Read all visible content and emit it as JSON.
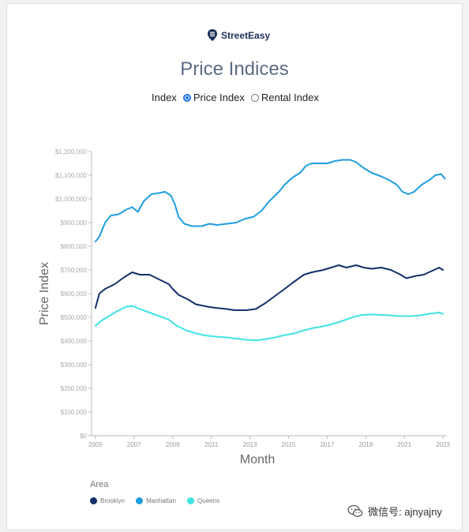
{
  "brand": {
    "name": "StreetEasy"
  },
  "watermark": {
    "text": "微信号: ajnyajny"
  },
  "controls": {
    "label": "Index",
    "options": [
      {
        "label": "Price Index",
        "selected": true
      },
      {
        "label": "Rental Index",
        "selected": false
      }
    ]
  },
  "legend": {
    "title": "Area"
  },
  "colors": {
    "accent": "#1a73e8",
    "brooklyn": "#13306a",
    "manhattan": "#1e9de0",
    "queens": "#41e3e3"
  },
  "chart_data": {
    "type": "line",
    "title": "Price Indices",
    "xlabel": "Month",
    "ylabel": "Price Index",
    "xlim": [
      2004.8,
      2023.2
    ],
    "ylim": [
      0,
      1200000
    ],
    "xticks": [
      2005,
      2007,
      2009,
      2011,
      2013,
      2015,
      2017,
      2019,
      2021,
      2023
    ],
    "yticks": [
      {
        "value": 0,
        "label": "$0"
      },
      {
        "value": 100000,
        "label": "$100,000"
      },
      {
        "value": 200000,
        "label": "$200,000"
      },
      {
        "value": 300000,
        "label": "$300,000"
      },
      {
        "value": 400000,
        "label": "$400,000"
      },
      {
        "value": 500000,
        "label": "$500,000"
      },
      {
        "value": 600000,
        "label": "$600,000"
      },
      {
        "value": 700000,
        "label": "$700,000"
      },
      {
        "value": 800000,
        "label": "$800,000"
      },
      {
        "value": 900000,
        "label": "$900,000"
      },
      {
        "value": 1000000,
        "label": "$1,000,000"
      },
      {
        "value": 1100000,
        "label": "$1,100,000"
      },
      {
        "value": 1200000,
        "label": "$1,200,000"
      }
    ],
    "grid": false,
    "legend_position": "bottom-left",
    "series": [
      {
        "name": "Brooklyn",
        "color": "#13306a",
        "points": [
          [
            2005.0,
            540000
          ],
          [
            2005.2,
            600000
          ],
          [
            2005.5,
            620000
          ],
          [
            2006.0,
            640000
          ],
          [
            2006.5,
            670000
          ],
          [
            2006.9,
            690000
          ],
          [
            2007.3,
            680000
          ],
          [
            2007.8,
            680000
          ],
          [
            2008.3,
            660000
          ],
          [
            2008.8,
            640000
          ],
          [
            2009.0,
            620000
          ],
          [
            2009.3,
            595000
          ],
          [
            2009.8,
            575000
          ],
          [
            2010.2,
            555000
          ],
          [
            2010.8,
            545000
          ],
          [
            2011.2,
            540000
          ],
          [
            2011.8,
            535000
          ],
          [
            2012.2,
            530000
          ],
          [
            2012.8,
            530000
          ],
          [
            2013.3,
            535000
          ],
          [
            2013.8,
            560000
          ],
          [
            2014.3,
            590000
          ],
          [
            2014.8,
            620000
          ],
          [
            2015.2,
            645000
          ],
          [
            2015.8,
            680000
          ],
          [
            2016.2,
            690000
          ],
          [
            2016.8,
            700000
          ],
          [
            2017.2,
            710000
          ],
          [
            2017.6,
            720000
          ],
          [
            2018.0,
            710000
          ],
          [
            2018.5,
            720000
          ],
          [
            2018.9,
            710000
          ],
          [
            2019.3,
            705000
          ],
          [
            2019.8,
            710000
          ],
          [
            2020.3,
            700000
          ],
          [
            2020.8,
            680000
          ],
          [
            2021.1,
            665000
          ],
          [
            2021.6,
            675000
          ],
          [
            2022.0,
            680000
          ],
          [
            2022.4,
            695000
          ],
          [
            2022.8,
            710000
          ],
          [
            2023.0,
            700000
          ]
        ]
      },
      {
        "name": "Manhattan",
        "color": "#1e9de0",
        "points": [
          [
            2005.0,
            820000
          ],
          [
            2005.2,
            840000
          ],
          [
            2005.5,
            900000
          ],
          [
            2005.8,
            930000
          ],
          [
            2006.2,
            935000
          ],
          [
            2006.6,
            955000
          ],
          [
            2006.9,
            965000
          ],
          [
            2007.2,
            945000
          ],
          [
            2007.5,
            990000
          ],
          [
            2007.9,
            1020000
          ],
          [
            2008.3,
            1025000
          ],
          [
            2008.6,
            1030000
          ],
          [
            2008.9,
            1015000
          ],
          [
            2009.1,
            980000
          ],
          [
            2009.3,
            925000
          ],
          [
            2009.6,
            895000
          ],
          [
            2010.0,
            885000
          ],
          [
            2010.5,
            885000
          ],
          [
            2010.9,
            895000
          ],
          [
            2011.3,
            890000
          ],
          [
            2011.8,
            895000
          ],
          [
            2012.3,
            900000
          ],
          [
            2012.7,
            915000
          ],
          [
            2013.2,
            925000
          ],
          [
            2013.6,
            950000
          ],
          [
            2014.0,
            990000
          ],
          [
            2014.5,
            1030000
          ],
          [
            2014.8,
            1060000
          ],
          [
            2015.2,
            1090000
          ],
          [
            2015.6,
            1110000
          ],
          [
            2015.9,
            1140000
          ],
          [
            2016.2,
            1150000
          ],
          [
            2016.6,
            1150000
          ],
          [
            2017.0,
            1150000
          ],
          [
            2017.4,
            1160000
          ],
          [
            2017.8,
            1165000
          ],
          [
            2018.2,
            1165000
          ],
          [
            2018.5,
            1155000
          ],
          [
            2018.9,
            1130000
          ],
          [
            2019.3,
            1110000
          ],
          [
            2019.8,
            1095000
          ],
          [
            2020.2,
            1080000
          ],
          [
            2020.6,
            1060000
          ],
          [
            2020.9,
            1030000
          ],
          [
            2021.2,
            1020000
          ],
          [
            2021.5,
            1030000
          ],
          [
            2021.9,
            1060000
          ],
          [
            2022.3,
            1080000
          ],
          [
            2022.6,
            1100000
          ],
          [
            2022.9,
            1105000
          ],
          [
            2023.1,
            1085000
          ]
        ]
      },
      {
        "name": "Queens",
        "color": "#41e3e3",
        "points": [
          [
            2005.0,
            465000
          ],
          [
            2005.3,
            485000
          ],
          [
            2005.7,
            505000
          ],
          [
            2006.1,
            525000
          ],
          [
            2006.6,
            545000
          ],
          [
            2006.9,
            548000
          ],
          [
            2007.3,
            535000
          ],
          [
            2007.8,
            520000
          ],
          [
            2008.3,
            505000
          ],
          [
            2008.8,
            490000
          ],
          [
            2009.2,
            465000
          ],
          [
            2009.7,
            445000
          ],
          [
            2010.2,
            432000
          ],
          [
            2010.8,
            422000
          ],
          [
            2011.3,
            418000
          ],
          [
            2011.8,
            415000
          ],
          [
            2012.3,
            410000
          ],
          [
            2012.8,
            405000
          ],
          [
            2013.3,
            402000
          ],
          [
            2013.8,
            408000
          ],
          [
            2014.3,
            415000
          ],
          [
            2014.8,
            425000
          ],
          [
            2015.3,
            432000
          ],
          [
            2015.8,
            445000
          ],
          [
            2016.3,
            455000
          ],
          [
            2016.8,
            462000
          ],
          [
            2017.3,
            472000
          ],
          [
            2017.8,
            485000
          ],
          [
            2018.3,
            500000
          ],
          [
            2018.8,
            510000
          ],
          [
            2019.3,
            512000
          ],
          [
            2019.8,
            510000
          ],
          [
            2020.3,
            508000
          ],
          [
            2020.8,
            505000
          ],
          [
            2021.3,
            505000
          ],
          [
            2021.8,
            508000
          ],
          [
            2022.3,
            515000
          ],
          [
            2022.8,
            520000
          ],
          [
            2023.0,
            515000
          ]
        ]
      }
    ]
  }
}
